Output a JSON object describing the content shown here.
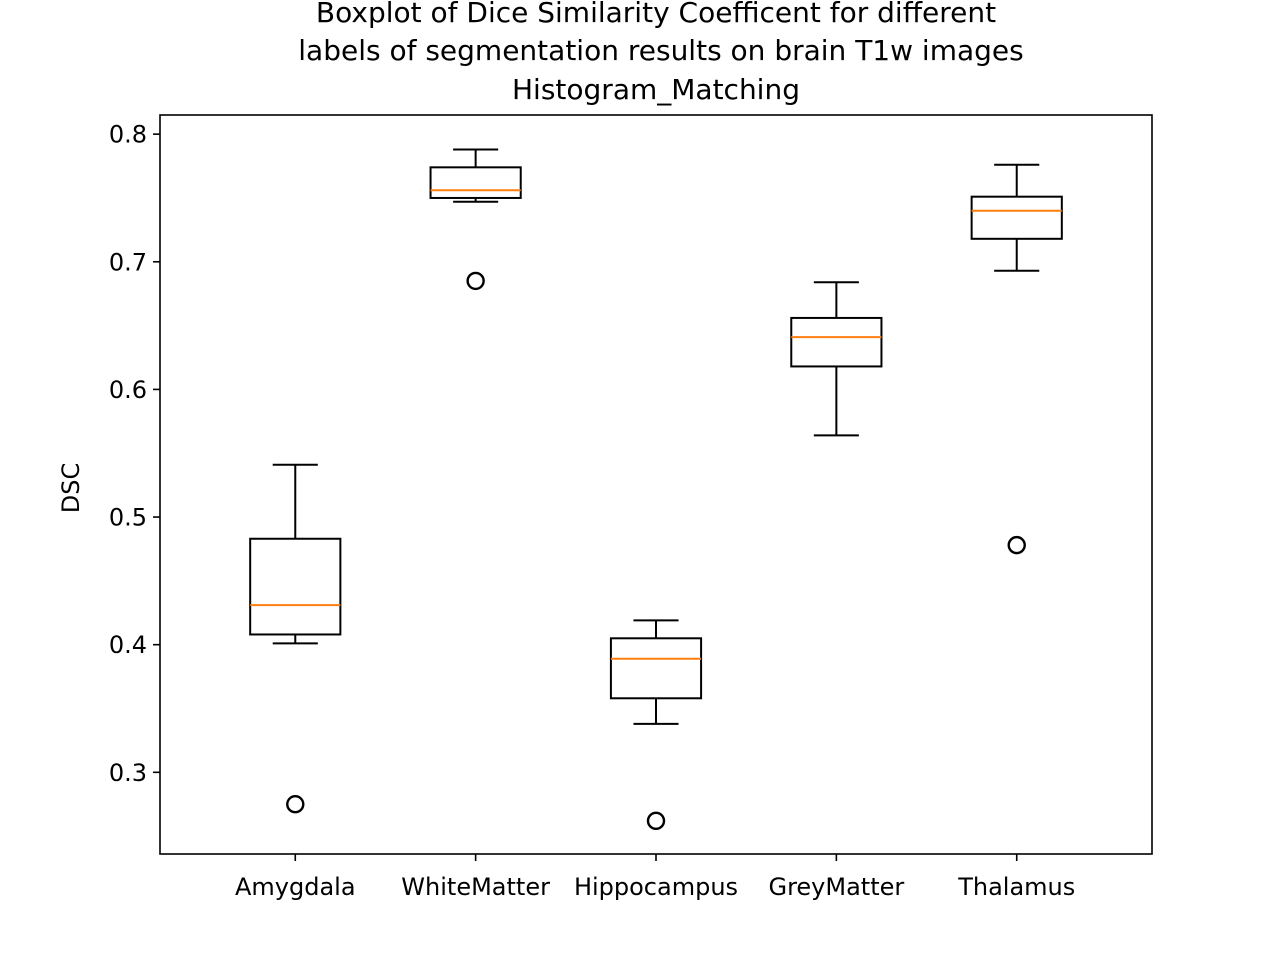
{
  "chart_data": {
    "type": "boxplot",
    "title": [
      "Boxplot of Dice Similarity Coefficent for different",
      "labels of segmentation results on brain T1w images",
      "Histogram_Matching"
    ],
    "xlabel": "",
    "ylabel": "DSC",
    "ylim": [
      0.236,
      0.815
    ],
    "yticks": [
      0.3,
      0.4,
      0.5,
      0.6,
      0.7,
      0.8
    ],
    "ytick_labels": [
      "0.3",
      "0.4",
      "0.5",
      "0.6",
      "0.7",
      "0.8"
    ],
    "grid": false,
    "categories": [
      "Amygdala",
      "WhiteMatter",
      "Hippocampus",
      "GreyMatter",
      "Thalamus"
    ],
    "boxes": [
      {
        "label": "Amygdala",
        "whisker_low": 0.401,
        "q1": 0.408,
        "median": 0.431,
        "q3": 0.483,
        "whisker_high": 0.541,
        "outliers": [
          0.275
        ]
      },
      {
        "label": "WhiteMatter",
        "whisker_low": 0.747,
        "q1": 0.75,
        "median": 0.756,
        "q3": 0.774,
        "whisker_high": 0.788,
        "outliers": [
          0.685
        ]
      },
      {
        "label": "Hippocampus",
        "whisker_low": 0.338,
        "q1": 0.358,
        "median": 0.389,
        "q3": 0.405,
        "whisker_high": 0.419,
        "outliers": [
          0.262
        ]
      },
      {
        "label": "GreyMatter",
        "whisker_low": 0.564,
        "q1": 0.618,
        "median": 0.641,
        "q3": 0.656,
        "whisker_high": 0.684,
        "outliers": []
      },
      {
        "label": "Thalamus",
        "whisker_low": 0.693,
        "q1": 0.718,
        "median": 0.74,
        "q3": 0.751,
        "whisker_high": 0.776,
        "outliers": [
          0.478
        ]
      }
    ],
    "colors": {
      "box": "#000000",
      "median": "#ff7f0e",
      "background": "#ffffff"
    }
  }
}
